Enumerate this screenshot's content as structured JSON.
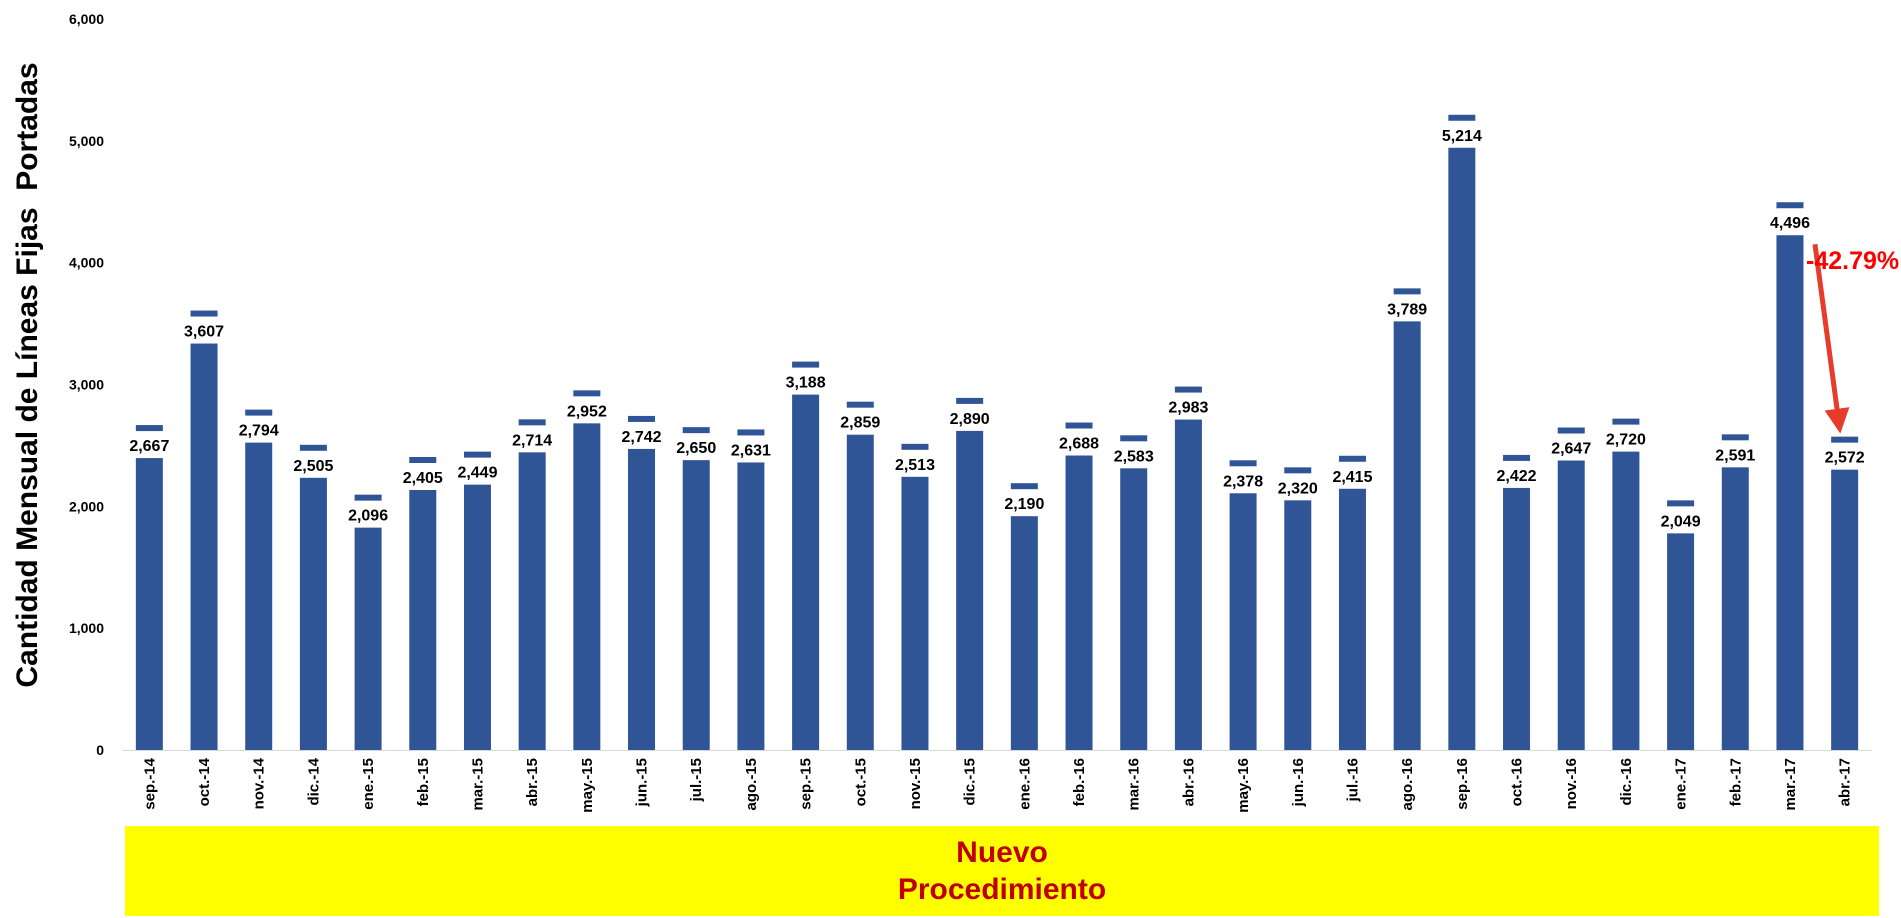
{
  "chart_data": {
    "type": "bar",
    "categories": [
      "sep.-14",
      "oct.-14",
      "nov.-14",
      "dic.-14",
      "ene.-15",
      "feb.-15",
      "mar.-15",
      "abr.-15",
      "may.-15",
      "jun.-15",
      "jul.-15",
      "ago.-15",
      "sep.-15",
      "oct.-15",
      "nov.-15",
      "dic.-15",
      "ene.-16",
      "feb.-16",
      "mar.-16",
      "abr.-16",
      "may.-16",
      "jun.-16",
      "jul.-16",
      "ago.-16",
      "sep.-16",
      "oct.-16",
      "nov.-16",
      "dic.-16",
      "ene.-17",
      "feb.-17",
      "mar.-17",
      "abr.-17"
    ],
    "values": [
      2667,
      3607,
      2794,
      2505,
      2096,
      2405,
      2449,
      2714,
      2952,
      2742,
      2650,
      2631,
      3188,
      2859,
      2513,
      2890,
      2190,
      2688,
      2583,
      2983,
      2378,
      2320,
      2415,
      3789,
      5214,
      2422,
      2647,
      2720,
      2049,
      2591,
      4496,
      2572
    ],
    "value_labels": [
      "2,667",
      "3,607",
      "2,794",
      "2,505",
      "2,096",
      "2,405",
      "2,449",
      "2,714",
      "2,952",
      "2,742",
      "2,650",
      "2,631",
      "3,188",
      "2,859",
      "2,513",
      "2,890",
      "2,190",
      "2,688",
      "2,583",
      "2,983",
      "2,378",
      "2,320",
      "2,415",
      "3,789",
      "5,214",
      "2,422",
      "2,647",
      "2,720",
      "2,049",
      "2,591",
      "4,496",
      "2,572"
    ],
    "ylabel": "Cantidad Mensual de Líneas Fijas  Portadas",
    "xlabel": "",
    "ylim": [
      0,
      6000
    ],
    "yticks": [
      0,
      1000,
      2000,
      3000,
      4000,
      5000,
      6000
    ],
    "ytick_labels": [
      "0",
      "1,000",
      "2,000",
      "3,000",
      "4,000",
      "5,000",
      "6,000"
    ],
    "grid": false,
    "colors": {
      "bar": "#2f5597",
      "arrow": "#e63c2c",
      "annotation": "#ff0000"
    },
    "annotation": {
      "text": "-42.79%",
      "from_category": "mar.-17",
      "to_category": "abr.-17"
    }
  },
  "banner": {
    "line1": "Nuevo",
    "line2": "Procedimiento",
    "background": "#ffff00",
    "text_color": "#c00000"
  }
}
